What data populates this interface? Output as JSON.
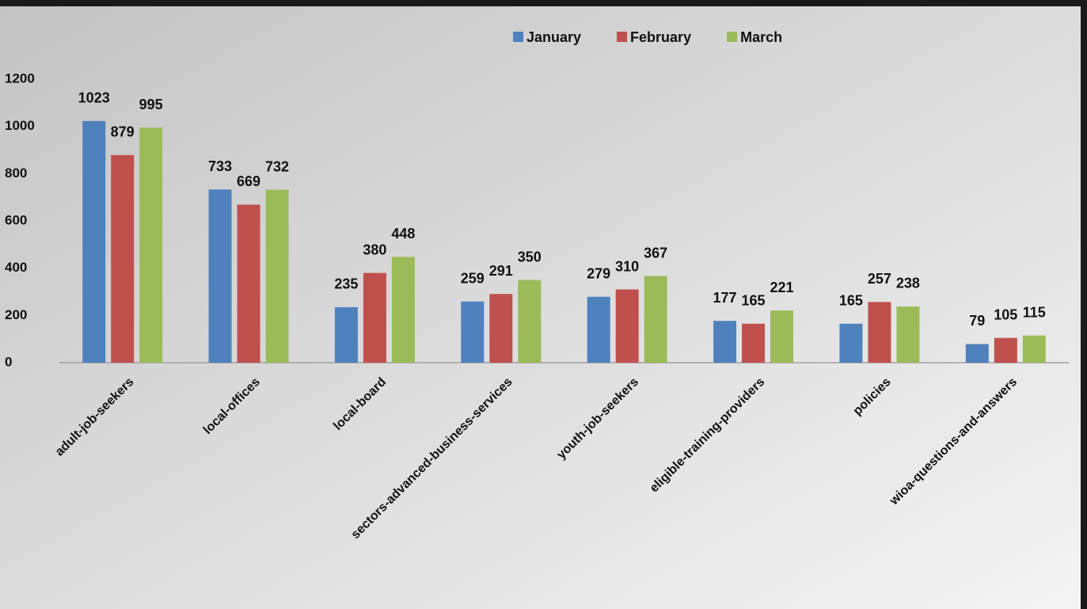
{
  "chart_data": {
    "type": "bar",
    "categories": [
      "adult-job-seekers",
      "local-offices",
      "local-board",
      "sectors-advanced-business-services",
      "youth-job-seekers",
      "eligible-training-providers",
      "policies",
      "wioa-questions-and-answers"
    ],
    "series": [
      {
        "name": "January",
        "color": "#4f81bd",
        "values": [
          1023,
          733,
          235,
          259,
          279,
          177,
          165,
          79
        ]
      },
      {
        "name": "February",
        "color": "#c0504d",
        "values": [
          879,
          669,
          380,
          291,
          310,
          165,
          257,
          105
        ]
      },
      {
        "name": "March",
        "color": "#9bbb59",
        "values": [
          995,
          732,
          448,
          350,
          367,
          221,
          238,
          115
        ]
      }
    ],
    "ylim": [
      0,
      1200
    ],
    "yticks": [
      0,
      200,
      400,
      600,
      800,
      1000,
      1200
    ],
    "grid": false,
    "legend": "top"
  }
}
